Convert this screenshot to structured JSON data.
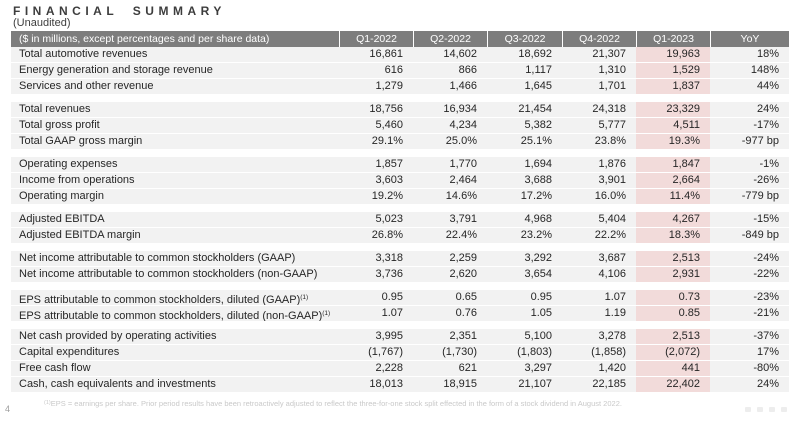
{
  "page": {
    "title": "FINANCIAL SUMMARY",
    "subtitle": "(Unaudited)",
    "page_number": "4",
    "footnote_sup": "(1)",
    "footnote": "EPS = earnings per share. Prior period results have been retroactively adjusted to reflect the three-for-one stock split effected in the form of a stock dividend in August 2022."
  },
  "colors": {
    "header_bg": "#7d7d7d",
    "header_text": "#ffffff",
    "row_bg": "#f2f2f2",
    "highlight_column_bg": "#f2dbda",
    "footnote_text": "#c9c9c9"
  },
  "footer_icons": [
    "faint-glyph",
    "faint-glyph",
    "faint-glyph",
    "faint-glyph"
  ],
  "table": {
    "header_label": "($ in millions, except percentages and per share data)",
    "columns": [
      "Q1-2022",
      "Q2-2022",
      "Q3-2022",
      "Q4-2022",
      "Q1-2023",
      "YoY"
    ],
    "highlight_column": "Q1-2023",
    "sections": [
      {
        "rows": [
          {
            "label": "Total automotive revenues",
            "values": [
              "16,861",
              "14,602",
              "18,692",
              "21,307",
              "19,963",
              "18%"
            ]
          },
          {
            "label": "Energy generation and storage revenue",
            "values": [
              "616",
              "866",
              "1,117",
              "1,310",
              "1,529",
              "148%"
            ]
          },
          {
            "label": "Services and other revenue",
            "values": [
              "1,279",
              "1,466",
              "1,645",
              "1,701",
              "1,837",
              "44%"
            ]
          }
        ]
      },
      {
        "rows": [
          {
            "label": "Total revenues",
            "values": [
              "18,756",
              "16,934",
              "21,454",
              "24,318",
              "23,329",
              "24%"
            ]
          },
          {
            "label": "Total gross profit",
            "values": [
              "5,460",
              "4,234",
              "5,382",
              "5,777",
              "4,511",
              "-17%"
            ]
          },
          {
            "label": "Total GAAP gross margin",
            "values": [
              "29.1%",
              "25.0%",
              "25.1%",
              "23.8%",
              "19.3%",
              "-977 bp"
            ]
          }
        ]
      },
      {
        "rows": [
          {
            "label": "Operating expenses",
            "values": [
              "1,857",
              "1,770",
              "1,694",
              "1,876",
              "1,847",
              "-1%"
            ]
          },
          {
            "label": "Income from operations",
            "values": [
              "3,603",
              "2,464",
              "3,688",
              "3,901",
              "2,664",
              "-26%"
            ]
          },
          {
            "label": "Operating margin",
            "values": [
              "19.2%",
              "14.6%",
              "17.2%",
              "16.0%",
              "11.4%",
              "-779 bp"
            ]
          }
        ]
      },
      {
        "rows": [
          {
            "label": "Adjusted EBITDA",
            "values": [
              "5,023",
              "3,791",
              "4,968",
              "5,404",
              "4,267",
              "-15%"
            ]
          },
          {
            "label": "Adjusted EBITDA margin",
            "values": [
              "26.8%",
              "22.4%",
              "23.2%",
              "22.2%",
              "18.3%",
              "-849 bp"
            ]
          }
        ]
      },
      {
        "rows": [
          {
            "label": "Net income attributable to common stockholders (GAAP)",
            "values": [
              "3,318",
              "2,259",
              "3,292",
              "3,687",
              "2,513",
              "-24%"
            ]
          },
          {
            "label": "Net income attributable to common stockholders (non-GAAP)",
            "values": [
              "3,736",
              "2,620",
              "3,654",
              "4,106",
              "2,931",
              "-22%"
            ]
          }
        ]
      },
      {
        "rows": [
          {
            "label": "EPS attributable to common stockholders, diluted (GAAP)",
            "sup": "(1)",
            "values": [
              "0.95",
              "0.65",
              "0.95",
              "1.07",
              "0.73",
              "-23%"
            ]
          },
          {
            "label": "EPS attributable to common stockholders, diluted (non-GAAP)",
            "sup": "(1)",
            "values": [
              "1.07",
              "0.76",
              "1.05",
              "1.19",
              "0.85",
              "-21%"
            ]
          }
        ]
      },
      {
        "rows": [
          {
            "label": "Net cash provided by operating activities",
            "values": [
              "3,995",
              "2,351",
              "5,100",
              "3,278",
              "2,513",
              "-37%"
            ]
          },
          {
            "label": "Capital expenditures",
            "values": [
              "(1,767)",
              "(1,730)",
              "(1,803)",
              "(1,858)",
              "(2,072)",
              "17%"
            ]
          },
          {
            "label": "Free cash flow",
            "values": [
              "2,228",
              "621",
              "3,297",
              "1,420",
              "441",
              "-80%"
            ]
          },
          {
            "label": "Cash, cash equivalents and investments",
            "values": [
              "18,013",
              "18,915",
              "21,107",
              "22,185",
              "22,402",
              "24%"
            ]
          }
        ]
      }
    ]
  }
}
